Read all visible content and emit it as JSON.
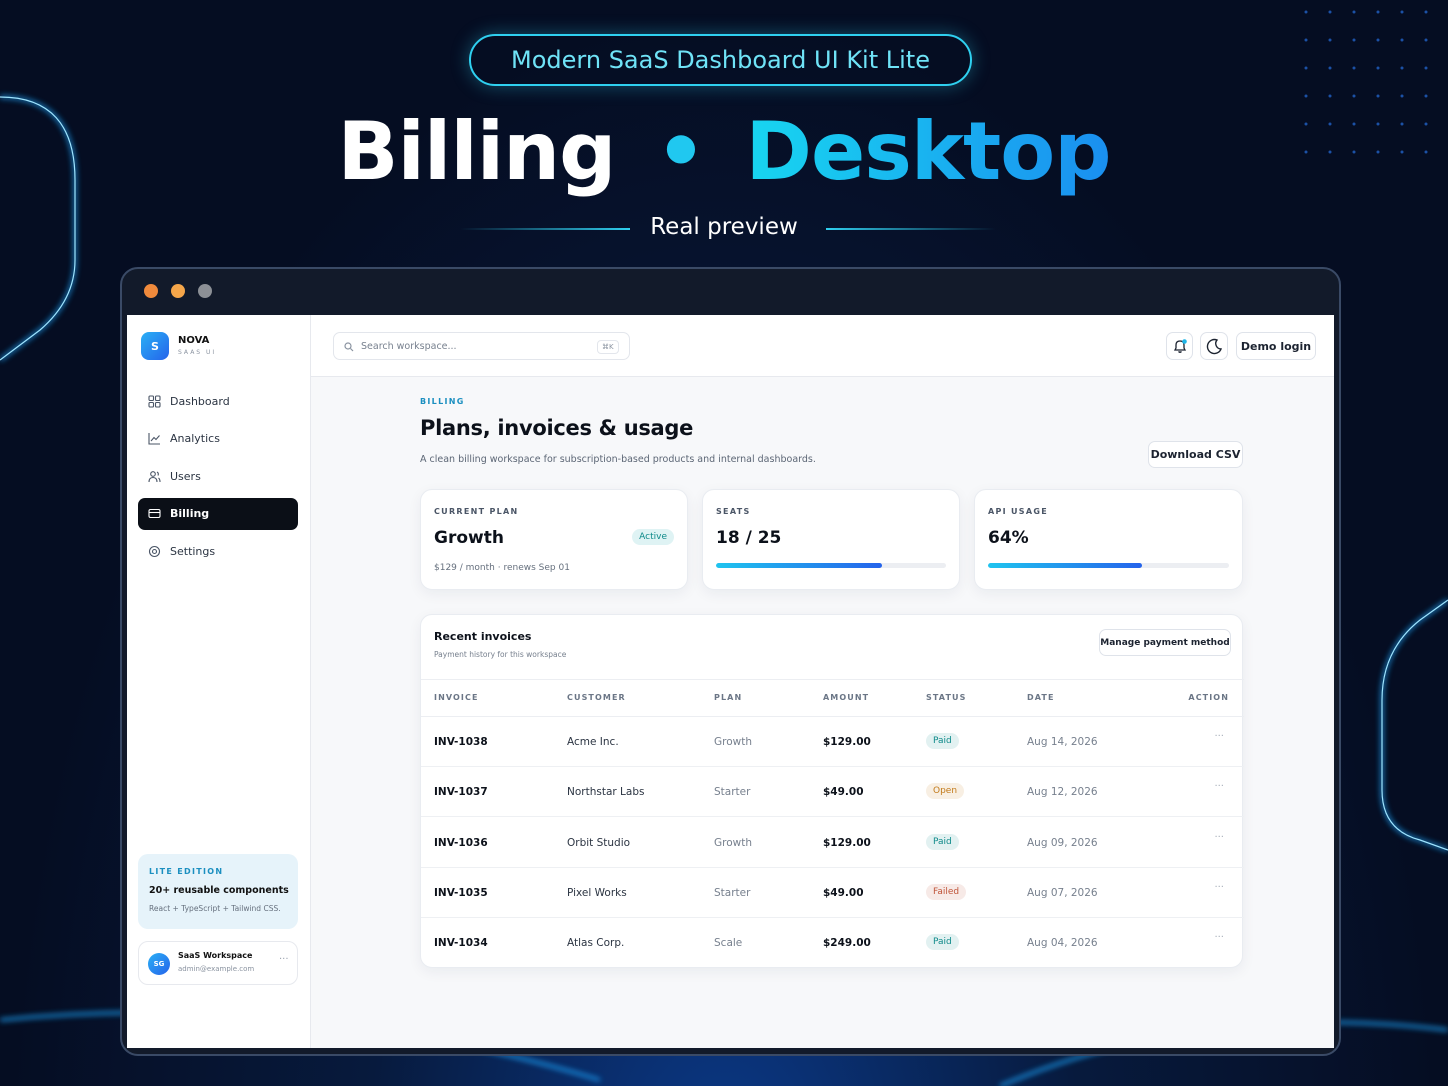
{
  "header": {
    "badge": "Modern SaaS Dashboard UI Kit Lite",
    "title_left": "Billing",
    "title_right": "Desktop",
    "subtitle": "Real preview"
  },
  "sidebar": {
    "logo": "S",
    "brand": "NOVA",
    "brand_sub": "SAAS UI",
    "nav": [
      "Dashboard",
      "Analytics",
      "Users",
      "Billing",
      "Settings"
    ],
    "promo": {
      "label": "LITE EDITION",
      "title": "20+ reusable components",
      "text": "React + TypeScript + Tailwind CSS."
    },
    "workspace": {
      "avatar": "SG",
      "name": "SaaS Workspace",
      "email": "admin@example.com"
    }
  },
  "topbar": {
    "search_placeholder": "Search workspace...",
    "shortcut": "⌘K",
    "button": "Demo login"
  },
  "page": {
    "eyebrow": "BILLING",
    "title": "Plans, invoices & usage",
    "description": "A clean billing workspace for subscription-based products and internal dashboards.",
    "button": "Download CSV"
  },
  "cards": [
    {
      "label": "CURRENT PLAN",
      "value": "Growth",
      "badge": "Active",
      "note": "$129 / month · renews Sep 01"
    },
    {
      "label": "SEATS",
      "value": "18 / 25",
      "progress": 72
    },
    {
      "label": "API USAGE",
      "value": "64%",
      "progress": 64
    }
  ],
  "invoices": {
    "title": "Recent invoices",
    "subtitle": "Payment history for this workspace",
    "button": "Manage payment method",
    "columns": [
      "INVOICE",
      "CUSTOMER",
      "PLAN",
      "AMOUNT",
      "STATUS",
      "DATE",
      "ACTION"
    ],
    "rows": [
      {
        "invoice": "INV-1038",
        "customer": "Acme Inc.",
        "plan": "Growth",
        "amount": "$129.00",
        "status": "Paid",
        "status_color": "#0e8a8a",
        "date": "Aug 14, 2026"
      },
      {
        "invoice": "INV-1037",
        "customer": "Northstar Labs",
        "plan": "Starter",
        "amount": "$49.00",
        "status": "Open",
        "status_color": "#c27a1a",
        "date": "Aug 12, 2026"
      },
      {
        "invoice": "INV-1036",
        "customer": "Orbit Studio",
        "plan": "Growth",
        "amount": "$129.00",
        "status": "Paid",
        "status_color": "#0e8a8a",
        "date": "Aug 09, 2026"
      },
      {
        "invoice": "INV-1035",
        "customer": "Pixel Works",
        "plan": "Starter",
        "amount": "$49.00",
        "status": "Failed",
        "status_color": "#c0553a",
        "date": "Aug 07, 2026"
      },
      {
        "invoice": "INV-1034",
        "customer": "Atlas Corp.",
        "plan": "Scale",
        "amount": "$249.00",
        "status": "Paid",
        "status_color": "#0e8a8a",
        "date": "Aug 04, 2026"
      }
    ]
  }
}
